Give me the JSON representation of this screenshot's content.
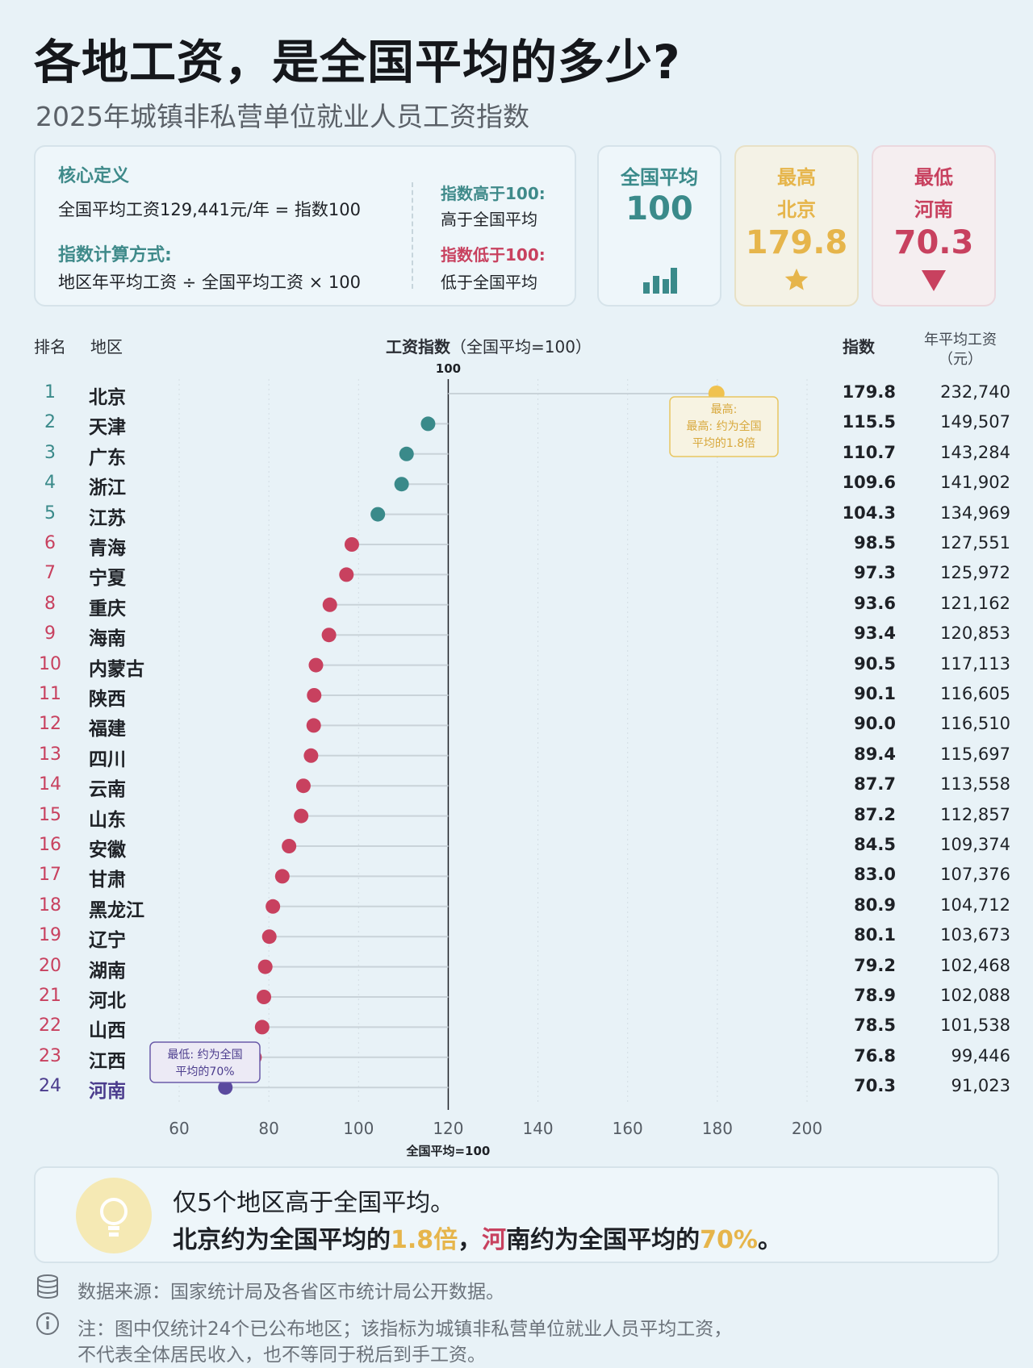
{
  "header": {
    "title": "各地工资，是全国平均的多少?",
    "subtitle": "2025年城镇非私营单位就业人员工资指数"
  },
  "definition": {
    "heading": "核心定义",
    "text": "全国平均工资129,441元/年 = 指数100",
    "method_heading": "指数计算方式:",
    "method_text": "地区年平均工资 ÷ 全国平均工资 × 100",
    "above_label": "指数高于100:",
    "above_text": "高于全国平均",
    "below_label": "指数低于100:",
    "below_text": "低于全国平均"
  },
  "kpis": {
    "avg": {
      "label": "全国平均",
      "value": "100",
      "icon": "bar-chart-icon"
    },
    "max": {
      "label": "最高",
      "region": "北京",
      "value": "179.8",
      "icon": "star-icon"
    },
    "min": {
      "label": "最低",
      "region": "河南",
      "value": "70.3",
      "icon": "down-triangle-icon"
    }
  },
  "table_header": {
    "rank": "排名",
    "region": "地区",
    "chart_title": "工资指数",
    "chart_title_note": "（全国平均=100）",
    "index": "指数",
    "wage": "年平均工资",
    "wage_unit": "（元）"
  },
  "chart_data": {
    "type": "scatter",
    "subtype": "dot-plot",
    "xlim": [
      60,
      200
    ],
    "xticks": [
      "60",
      "80",
      "100",
      "120",
      "140",
      "160",
      "180",
      "200"
    ],
    "top_label": "100",
    "xlabel": "全国平均=100",
    "highlight_max": "最高:\n最高: 约为全国\n平均的1.8倍",
    "highlight_min": "最低: 约为全国\n平均的70%",
    "colors": {
      "above": "#3a8a8a",
      "below": "#c8415f",
      "max": "#f0c24f",
      "min": "#5a4a9e"
    },
    "rows": [
      {
        "rank": "1",
        "region": "北京",
        "index": "179.8",
        "wage": "232,740"
      },
      {
        "rank": "2",
        "region": "天津",
        "index": "115.5",
        "wage": "149,507"
      },
      {
        "rank": "3",
        "region": "广东",
        "index": "110.7",
        "wage": "143,284"
      },
      {
        "rank": "4",
        "region": "浙江",
        "index": "109.6",
        "wage": "141,902"
      },
      {
        "rank": "5",
        "region": "江苏",
        "index": "104.3",
        "wage": "134,969"
      },
      {
        "rank": "6",
        "region": "青海",
        "index": "98.5",
        "wage": "127,551"
      },
      {
        "rank": "7",
        "region": "宁夏",
        "index": "97.3",
        "wage": "125,972"
      },
      {
        "rank": "8",
        "region": "重庆",
        "index": "93.6",
        "wage": "121,162"
      },
      {
        "rank": "9",
        "region": "海南",
        "index": "93.4",
        "wage": "120,853"
      },
      {
        "rank": "10",
        "region": "内蒙古",
        "index": "90.5",
        "wage": "117,113"
      },
      {
        "rank": "11",
        "region": "陕西",
        "index": "90.1",
        "wage": "116,605"
      },
      {
        "rank": "12",
        "region": "福建",
        "index": "90.0",
        "wage": "116,510"
      },
      {
        "rank": "13",
        "region": "四川",
        "index": "89.4",
        "wage": "115,697"
      },
      {
        "rank": "14",
        "region": "云南",
        "index": "87.7",
        "wage": "113,558"
      },
      {
        "rank": "15",
        "region": "山东",
        "index": "87.2",
        "wage": "112,857"
      },
      {
        "rank": "16",
        "region": "安徽",
        "index": "84.5",
        "wage": "109,374"
      },
      {
        "rank": "17",
        "region": "甘肃",
        "index": "83.0",
        "wage": "107,376"
      },
      {
        "rank": "18",
        "region": "黑龙江",
        "index": "80.9",
        "wage": "104,712"
      },
      {
        "rank": "19",
        "region": "辽宁",
        "index": "80.1",
        "wage": "103,673"
      },
      {
        "rank": "20",
        "region": "湖南",
        "index": "79.2",
        "wage": "102,468"
      },
      {
        "rank": "21",
        "region": "河北",
        "index": "78.9",
        "wage": "102,088"
      },
      {
        "rank": "22",
        "region": "山西",
        "index": "78.5",
        "wage": "101,538"
      },
      {
        "rank": "23",
        "region": "江西",
        "index": "76.8",
        "wage": "99,446"
      },
      {
        "rank": "24",
        "region": "河南",
        "index": "70.3",
        "wage": "91,023"
      }
    ]
  },
  "insight": {
    "icon": "lightbulb-icon",
    "line1": "仅5个地区高于全国平均。",
    "line2_a": "北京约为全国平均的",
    "line2_b": "1.8倍",
    "line2_c": "，",
    "line2_d": "河",
    "line2_e": "南约为全国平均的",
    "line2_f": "70%",
    "line2_g": "。"
  },
  "footer": {
    "source_icon": "database-icon",
    "source": "数据来源：国家统计局及各省区市统计局公开数据。",
    "note_icon": "info-icon",
    "note1": "注：图中仅统计24个已公布地区；该指标为城镇非私营单位就业人员平均工资，",
    "note2": "不代表全体居民收入，也不等同于税后到手工资。"
  }
}
